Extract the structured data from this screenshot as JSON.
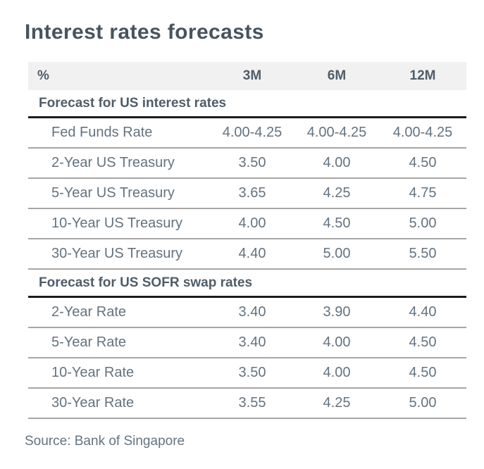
{
  "title": "Interest rates forecasts",
  "table": {
    "unit_label": "%",
    "columns": [
      "3M",
      "6M",
      "12M"
    ],
    "sections": [
      {
        "header": "Forecast for US interest rates",
        "rows": [
          {
            "label": "Fed Funds Rate",
            "values": [
              "4.00-4.25",
              "4.00-4.25",
              "4.00-4.25"
            ]
          },
          {
            "label": "2-Year US Treasury",
            "values": [
              "3.50",
              "4.00",
              "4.50"
            ]
          },
          {
            "label": "5-Year US Treasury",
            "values": [
              "3.65",
              "4.25",
              "4.75"
            ]
          },
          {
            "label": "10-Year US Treasury",
            "values": [
              "4.00",
              "4.50",
              "5.00"
            ]
          },
          {
            "label": "30-Year US Treasury",
            "values": [
              "4.40",
              "5.00",
              "5.50"
            ]
          }
        ]
      },
      {
        "header": "Forecast for US SOFR swap rates",
        "rows": [
          {
            "label": "2-Year Rate",
            "values": [
              "3.40",
              "3.90",
              "4.40"
            ]
          },
          {
            "label": "5-Year Rate",
            "values": [
              "3.40",
              "4.00",
              "4.50"
            ]
          },
          {
            "label": "10-Year Rate",
            "values": [
              "3.50",
              "4.00",
              "4.50"
            ]
          },
          {
            "label": "30-Year Rate",
            "values": [
              "3.55",
              "4.25",
              "5.00"
            ]
          }
        ]
      }
    ]
  },
  "source": "Source: Bank of Singapore",
  "colors": {
    "title": "#47545f",
    "header_text": "#4f5d69",
    "body_text": "#64737f",
    "band_background": "#f1f1f2",
    "rule_heavy": "#1c1c1c",
    "rule_thin": "#a6a6a6"
  },
  "chart_data": {
    "type": "table",
    "title": "Interest rates forecasts",
    "unit": "%",
    "columns": [
      "3M",
      "6M",
      "12M"
    ],
    "sections": [
      {
        "name": "Forecast for US interest rates",
        "rows": [
          {
            "label": "Fed Funds Rate",
            "values": [
              "4.00-4.25",
              "4.00-4.25",
              "4.00-4.25"
            ]
          },
          {
            "label": "2-Year US Treasury",
            "values": [
              3.5,
              4.0,
              4.5
            ]
          },
          {
            "label": "5-Year US Treasury",
            "values": [
              3.65,
              4.25,
              4.75
            ]
          },
          {
            "label": "10-Year US Treasury",
            "values": [
              4.0,
              4.5,
              5.0
            ]
          },
          {
            "label": "30-Year US Treasury",
            "values": [
              4.4,
              5.0,
              5.5
            ]
          }
        ]
      },
      {
        "name": "Forecast for US SOFR swap rates",
        "rows": [
          {
            "label": "2-Year Rate",
            "values": [
              3.4,
              3.9,
              4.4
            ]
          },
          {
            "label": "5-Year Rate",
            "values": [
              3.4,
              4.0,
              4.5
            ]
          },
          {
            "label": "10-Year Rate",
            "values": [
              3.5,
              4.0,
              4.5
            ]
          },
          {
            "label": "30-Year Rate",
            "values": [
              3.55,
              4.25,
              5.0
            ]
          }
        ]
      }
    ],
    "source": "Source: Bank of Singapore"
  }
}
